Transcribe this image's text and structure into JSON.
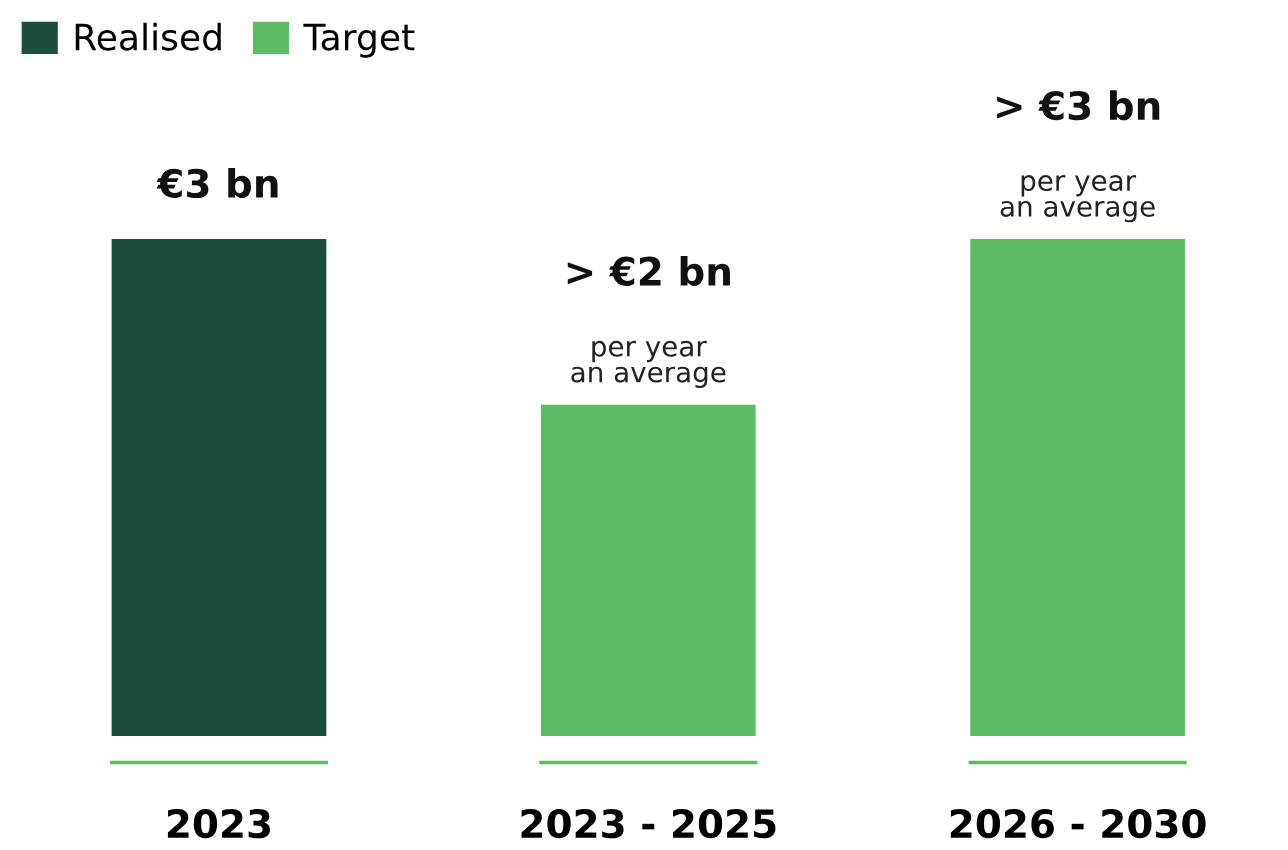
{
  "chart_data": {
    "type": "bar",
    "categories": [
      "2023",
      "2023 - 2025",
      "2026 - 2030"
    ],
    "series": [
      {
        "name": "Realised",
        "color": "#1d4e3a",
        "values": [
          3,
          null,
          null
        ],
        "value_labels": [
          "€3 bn",
          null,
          null
        ]
      },
      {
        "name": "Target",
        "color": "#5dbb63",
        "values": [
          null,
          2,
          3
        ],
        "value_labels": [
          null,
          "> €2 bn",
          "> €3 bn"
        ]
      }
    ],
    "annotations": [
      {
        "text": "per year\nan average",
        "x": "2023 - 2025",
        "y": 2
      },
      {
        "text": "per year\nan average",
        "x": "2026 - 2030",
        "y": 3
      }
    ],
    "legend": "top left",
    "grid": false
  }
}
